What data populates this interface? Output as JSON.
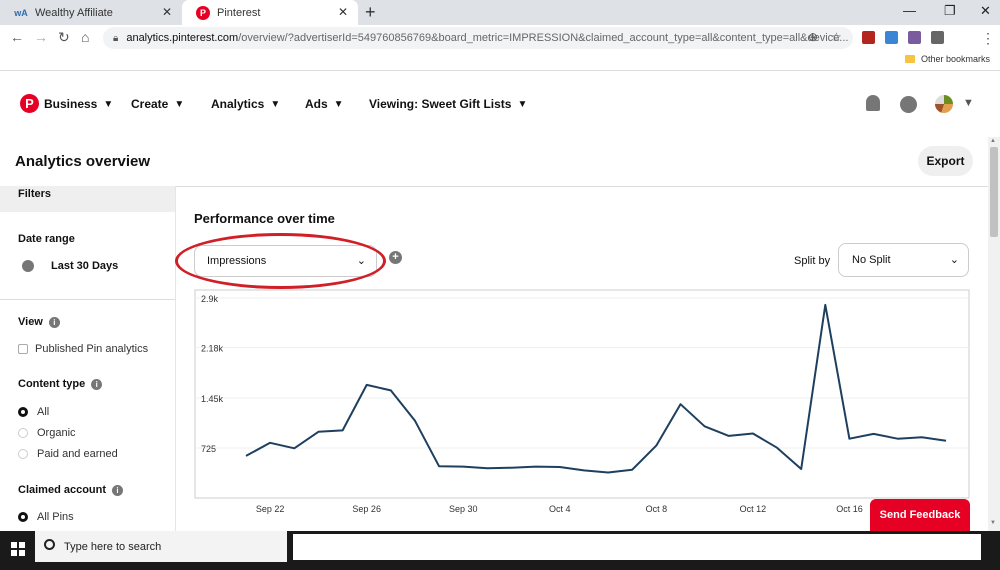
{
  "browser": {
    "tabs": [
      {
        "title": "Wealthy Affiliate",
        "favicon": "wa-icon"
      },
      {
        "title": "Pinterest",
        "favicon": "pinterest-icon",
        "active": true
      }
    ],
    "url_host": "analytics.pinterest.com",
    "url_rest": "/overview/?advertiserId=549760856769&board_metric=IMPRESSION&claimed_account_type=all&content_type=all&device...",
    "bookmark_folder": "Other bookmarks"
  },
  "header": {
    "logo": "P",
    "nav": [
      {
        "label": "Business"
      },
      {
        "label": "Create"
      },
      {
        "label": "Analytics"
      },
      {
        "label": "Ads"
      },
      {
        "label": "Viewing: Sweet Gift Lists"
      }
    ]
  },
  "page": {
    "title": "Analytics overview",
    "export_label": "Export"
  },
  "sidebar": {
    "filters_label": "Filters",
    "date_range_label": "Date range",
    "date_range_value": "Last 30 Days",
    "view_label": "View",
    "view_option": "Published Pin analytics",
    "content_type_label": "Content type",
    "content_types": [
      "All",
      "Organic",
      "Paid and earned"
    ],
    "claimed_account_label": "Claimed account",
    "claimed_account_option": "All Pins"
  },
  "main": {
    "section_title": "Performance over time",
    "metric_value": "Impressions",
    "split_label": "Split by",
    "split_value": "No Split",
    "feedback_label": "Send Feedback"
  },
  "taskbar": {
    "search_placeholder": "Type here to search"
  },
  "chart_data": {
    "type": "line",
    "ytick_labels": [
      "2.9k",
      "2.18k",
      "1.45k",
      "725"
    ],
    "yticks": [
      2900,
      2180,
      1450,
      725
    ],
    "ylim": [
      0,
      2900
    ],
    "xtick_labels": [
      "Sep 22",
      "Sep 26",
      "Sep 30",
      "Oct 4",
      "Oct 8",
      "Oct 12",
      "Oct 16"
    ],
    "xtick_index": [
      1,
      5,
      9,
      13,
      17,
      21,
      25
    ],
    "series_color": "#1f3f5f",
    "values": [
      610,
      800,
      720,
      960,
      980,
      1640,
      1560,
      1120,
      460,
      455,
      430,
      440,
      455,
      450,
      400,
      370,
      410,
      760,
      1360,
      1040,
      900,
      935,
      730,
      420,
      2800,
      860,
      930,
      860,
      880,
      830
    ]
  }
}
